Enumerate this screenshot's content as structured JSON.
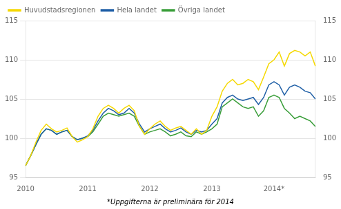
{
  "chart_data": {
    "type": "line",
    "annotation": "*Uppgifterna är preliminära för 2014",
    "categories": [
      "2010",
      null,
      null,
      null,
      null,
      null,
      null,
      null,
      null,
      null,
      null,
      null,
      "2011",
      null,
      null,
      null,
      null,
      null,
      null,
      null,
      null,
      null,
      null,
      null,
      "2012",
      null,
      null,
      null,
      null,
      null,
      null,
      null,
      null,
      null,
      null,
      null,
      "2013",
      null,
      null,
      null,
      null,
      null,
      null,
      null,
      null,
      null,
      null,
      null,
      "2014*",
      null,
      null,
      null,
      null,
      null,
      null,
      null,
      null
    ],
    "series": [
      {
        "name": "Huvudstadsregionen",
        "color": "#F5D800",
        "values": [
          96.5,
          97.8,
          99.5,
          101.0,
          101.8,
          101.2,
          100.8,
          101.0,
          101.3,
          100.2,
          99.5,
          99.8,
          100.2,
          101.2,
          102.8,
          103.8,
          104.2,
          103.8,
          103.2,
          103.8,
          104.2,
          103.5,
          101.5,
          100.5,
          101.2,
          101.8,
          102.2,
          101.5,
          101.0,
          101.3,
          101.5,
          101.0,
          100.5,
          101.2,
          100.5,
          101.0,
          102.8,
          104.0,
          106.0,
          107.0,
          107.5,
          106.8,
          107.0,
          107.5,
          107.2,
          106.2,
          107.8,
          109.5,
          110.0,
          111.0,
          109.2,
          110.8,
          111.2,
          111.0,
          110.5,
          111.0,
          109.2
        ]
      },
      {
        "name": "Hela landet",
        "color": "#1F5FA6",
        "values": [
          96.5,
          97.8,
          99.2,
          100.5,
          101.2,
          101.0,
          100.5,
          100.8,
          101.0,
          100.2,
          99.8,
          100.0,
          100.3,
          101.0,
          102.2,
          103.2,
          103.8,
          103.5,
          103.0,
          103.2,
          103.8,
          103.2,
          101.8,
          100.8,
          101.2,
          101.5,
          101.8,
          101.2,
          100.8,
          101.0,
          101.3,
          100.8,
          100.5,
          101.0,
          100.8,
          101.0,
          101.8,
          102.5,
          104.5,
          105.2,
          105.5,
          105.0,
          104.8,
          105.0,
          105.2,
          104.3,
          105.2,
          106.8,
          107.2,
          106.8,
          105.5,
          106.5,
          106.8,
          106.5,
          106.0,
          105.8,
          105.0
        ]
      },
      {
        "name": "Övriga landet",
        "color": "#3A9E3A",
        "values": [
          96.5,
          97.8,
          99.2,
          100.5,
          101.2,
          101.0,
          100.5,
          100.8,
          101.0,
          100.2,
          99.8,
          100.0,
          100.2,
          100.8,
          101.8,
          102.8,
          103.2,
          103.0,
          102.8,
          103.0,
          103.2,
          102.8,
          101.5,
          100.5,
          100.8,
          101.0,
          101.2,
          100.8,
          100.3,
          100.5,
          100.8,
          100.3,
          100.2,
          100.8,
          100.5,
          100.8,
          101.2,
          101.8,
          104.0,
          104.5,
          105.0,
          104.5,
          104.0,
          103.8,
          104.0,
          102.8,
          103.5,
          105.2,
          105.5,
          105.2,
          103.8,
          103.2,
          102.5,
          102.8,
          102.5,
          102.2,
          101.5
        ]
      }
    ],
    "ylim": [
      95,
      115
    ],
    "yticks": [
      95,
      100,
      105,
      110,
      115
    ],
    "y2lim": [
      95,
      115
    ],
    "y2ticks": [
      95,
      100,
      105,
      110,
      115
    ],
    "grid": true,
    "legend": "upper left"
  }
}
